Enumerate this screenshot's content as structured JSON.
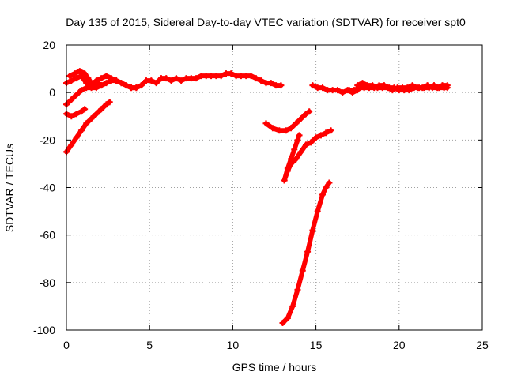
{
  "chart_data": {
    "type": "scatter",
    "title": "Day 135 of 2015, Sidereal Day-to-day VTEC variation (SDTVAR) for receiver spt0",
    "xlabel": "GPS time / hours",
    "ylabel": "SDTVAR / TECUs",
    "xlim": [
      0,
      25
    ],
    "ylim": [
      -100,
      20
    ],
    "xticks": [
      0,
      5,
      10,
      15,
      20,
      25
    ],
    "yticks": [
      -100,
      -80,
      -60,
      -40,
      -20,
      0,
      20
    ],
    "grid": true,
    "marker": "+",
    "color": "#ff0000",
    "series": [
      {
        "points": [
          [
            0,
            4
          ],
          [
            0.3,
            5
          ],
          [
            0.6,
            6
          ],
          [
            0.9,
            7
          ],
          [
            1.2,
            4
          ],
          [
            1.5,
            3
          ],
          [
            1.8,
            5
          ],
          [
            2.1,
            6
          ],
          [
            2.4,
            7
          ],
          [
            2.7,
            6
          ],
          [
            3.0,
            5
          ],
          [
            3.3,
            4
          ],
          [
            3.6,
            3
          ],
          [
            3.9,
            2
          ],
          [
            4.2,
            2
          ],
          [
            4.5,
            3
          ],
          [
            4.8,
            5
          ],
          [
            5.1,
            5
          ],
          [
            5.4,
            4
          ],
          [
            5.7,
            6
          ],
          [
            6.0,
            6
          ],
          [
            6.3,
            5
          ],
          [
            6.6,
            6
          ],
          [
            6.9,
            5
          ],
          [
            7.2,
            6
          ],
          [
            7.5,
            6
          ],
          [
            7.8,
            6
          ],
          [
            8.1,
            7
          ],
          [
            8.4,
            7
          ],
          [
            8.7,
            7
          ],
          [
            9.0,
            7
          ],
          [
            9.3,
            7
          ],
          [
            9.6,
            8
          ],
          [
            9.9,
            8
          ],
          [
            10.2,
            7
          ],
          [
            10.5,
            7
          ],
          [
            10.8,
            7
          ],
          [
            11.1,
            7
          ],
          [
            11.4,
            6
          ],
          [
            11.7,
            5
          ],
          [
            12.0,
            4
          ],
          [
            12.3,
            4
          ],
          [
            12.6,
            3
          ],
          [
            12.9,
            3
          ]
        ]
      },
      {
        "points": [
          [
            0.2,
            7
          ],
          [
            0.5,
            8
          ],
          [
            0.8,
            9
          ],
          [
            1.1,
            8
          ],
          [
            1.3,
            6
          ],
          [
            1.5,
            4
          ],
          [
            1.7,
            3
          ],
          [
            1.9,
            4
          ],
          [
            2.1,
            3
          ]
        ]
      },
      {
        "points": [
          [
            0,
            -5
          ],
          [
            0.3,
            -3
          ],
          [
            0.6,
            -1
          ],
          [
            0.9,
            1
          ],
          [
            1.2,
            2
          ],
          [
            1.5,
            2
          ],
          [
            1.8,
            2
          ],
          [
            2.1,
            3
          ],
          [
            2.4,
            4
          ],
          [
            2.7,
            5
          ],
          [
            3.0,
            5
          ],
          [
            3.3,
            4
          ],
          [
            3.6,
            3
          ],
          [
            3.9,
            2
          ],
          [
            4.2,
            2
          ]
        ]
      },
      {
        "points": [
          [
            0,
            -9
          ],
          [
            0.3,
            -10
          ],
          [
            0.6,
            -9
          ],
          [
            0.9,
            -8
          ],
          [
            1.1,
            -7
          ]
        ]
      },
      {
        "points": [
          [
            0,
            -25
          ],
          [
            0.3,
            -22
          ],
          [
            0.6,
            -19
          ],
          [
            0.9,
            -16
          ],
          [
            1.2,
            -13
          ],
          [
            1.5,
            -11
          ],
          [
            1.8,
            -9
          ],
          [
            2.1,
            -7
          ],
          [
            2.4,
            -5
          ],
          [
            2.6,
            -4
          ]
        ]
      },
      {
        "points": [
          [
            12.0,
            -13
          ],
          [
            12.4,
            -15
          ],
          [
            12.8,
            -16
          ],
          [
            13.2,
            -16
          ],
          [
            13.5,
            -15
          ],
          [
            13.8,
            -13
          ],
          [
            14.1,
            -11
          ],
          [
            14.4,
            -9
          ],
          [
            14.6,
            -8
          ]
        ]
      },
      {
        "points": [
          [
            13.1,
            -37
          ],
          [
            13.3,
            -33
          ],
          [
            13.5,
            -30
          ],
          [
            13.8,
            -28
          ],
          [
            14.1,
            -25
          ],
          [
            14.4,
            -22
          ],
          [
            14.7,
            -21
          ],
          [
            15.0,
            -19
          ]
        ]
      },
      {
        "points": [
          [
            13.1,
            -37
          ],
          [
            13.3,
            -32
          ],
          [
            13.5,
            -28
          ],
          [
            13.7,
            -24
          ],
          [
            13.9,
            -20
          ],
          [
            14.0,
            -18
          ]
        ]
      },
      {
        "points": [
          [
            15.0,
            -19
          ],
          [
            15.3,
            -18
          ],
          [
            15.6,
            -17
          ],
          [
            15.9,
            -16
          ]
        ]
      },
      {
        "points": [
          [
            13.0,
            -97
          ],
          [
            13.3,
            -95
          ],
          [
            13.6,
            -90
          ],
          [
            13.9,
            -83
          ],
          [
            14.2,
            -75
          ],
          [
            14.5,
            -67
          ],
          [
            14.8,
            -58
          ],
          [
            15.1,
            -50
          ],
          [
            15.4,
            -43
          ],
          [
            15.6,
            -40
          ],
          [
            15.8,
            -38
          ]
        ]
      },
      {
        "points": [
          [
            14.8,
            3
          ],
          [
            15.1,
            2
          ],
          [
            15.4,
            2
          ],
          [
            15.7,
            1
          ],
          [
            16.0,
            1
          ],
          [
            16.3,
            1
          ],
          [
            16.6,
            0
          ],
          [
            16.9,
            1
          ],
          [
            17.2,
            0
          ],
          [
            17.5,
            1
          ]
        ]
      },
      {
        "points": [
          [
            17.0,
            1
          ],
          [
            17.3,
            1
          ],
          [
            17.6,
            2
          ],
          [
            17.9,
            2
          ],
          [
            18.2,
            2
          ],
          [
            18.5,
            2
          ],
          [
            18.8,
            3
          ],
          [
            19.1,
            3
          ],
          [
            19.4,
            2
          ],
          [
            19.7,
            2
          ],
          [
            20.0,
            1
          ],
          [
            20.3,
            1
          ],
          [
            20.6,
            1
          ],
          [
            20.9,
            2
          ],
          [
            21.2,
            2
          ],
          [
            21.5,
            2
          ],
          [
            21.8,
            2
          ],
          [
            22.1,
            3
          ],
          [
            22.4,
            2
          ],
          [
            22.7,
            2
          ],
          [
            22.9,
            2
          ]
        ]
      },
      {
        "points": [
          [
            17.5,
            3
          ],
          [
            17.8,
            4
          ],
          [
            18.1,
            3
          ],
          [
            18.4,
            3
          ],
          [
            18.7,
            2
          ],
          [
            19.0,
            2
          ],
          [
            19.3,
            2
          ],
          [
            19.6,
            1
          ],
          [
            19.9,
            2
          ],
          [
            20.2,
            2
          ],
          [
            20.5,
            2
          ],
          [
            20.8,
            3
          ],
          [
            21.1,
            2
          ],
          [
            21.4,
            2
          ],
          [
            21.7,
            3
          ],
          [
            22.0,
            2
          ],
          [
            22.3,
            2
          ],
          [
            22.6,
            3
          ],
          [
            22.9,
            3
          ]
        ]
      }
    ]
  }
}
